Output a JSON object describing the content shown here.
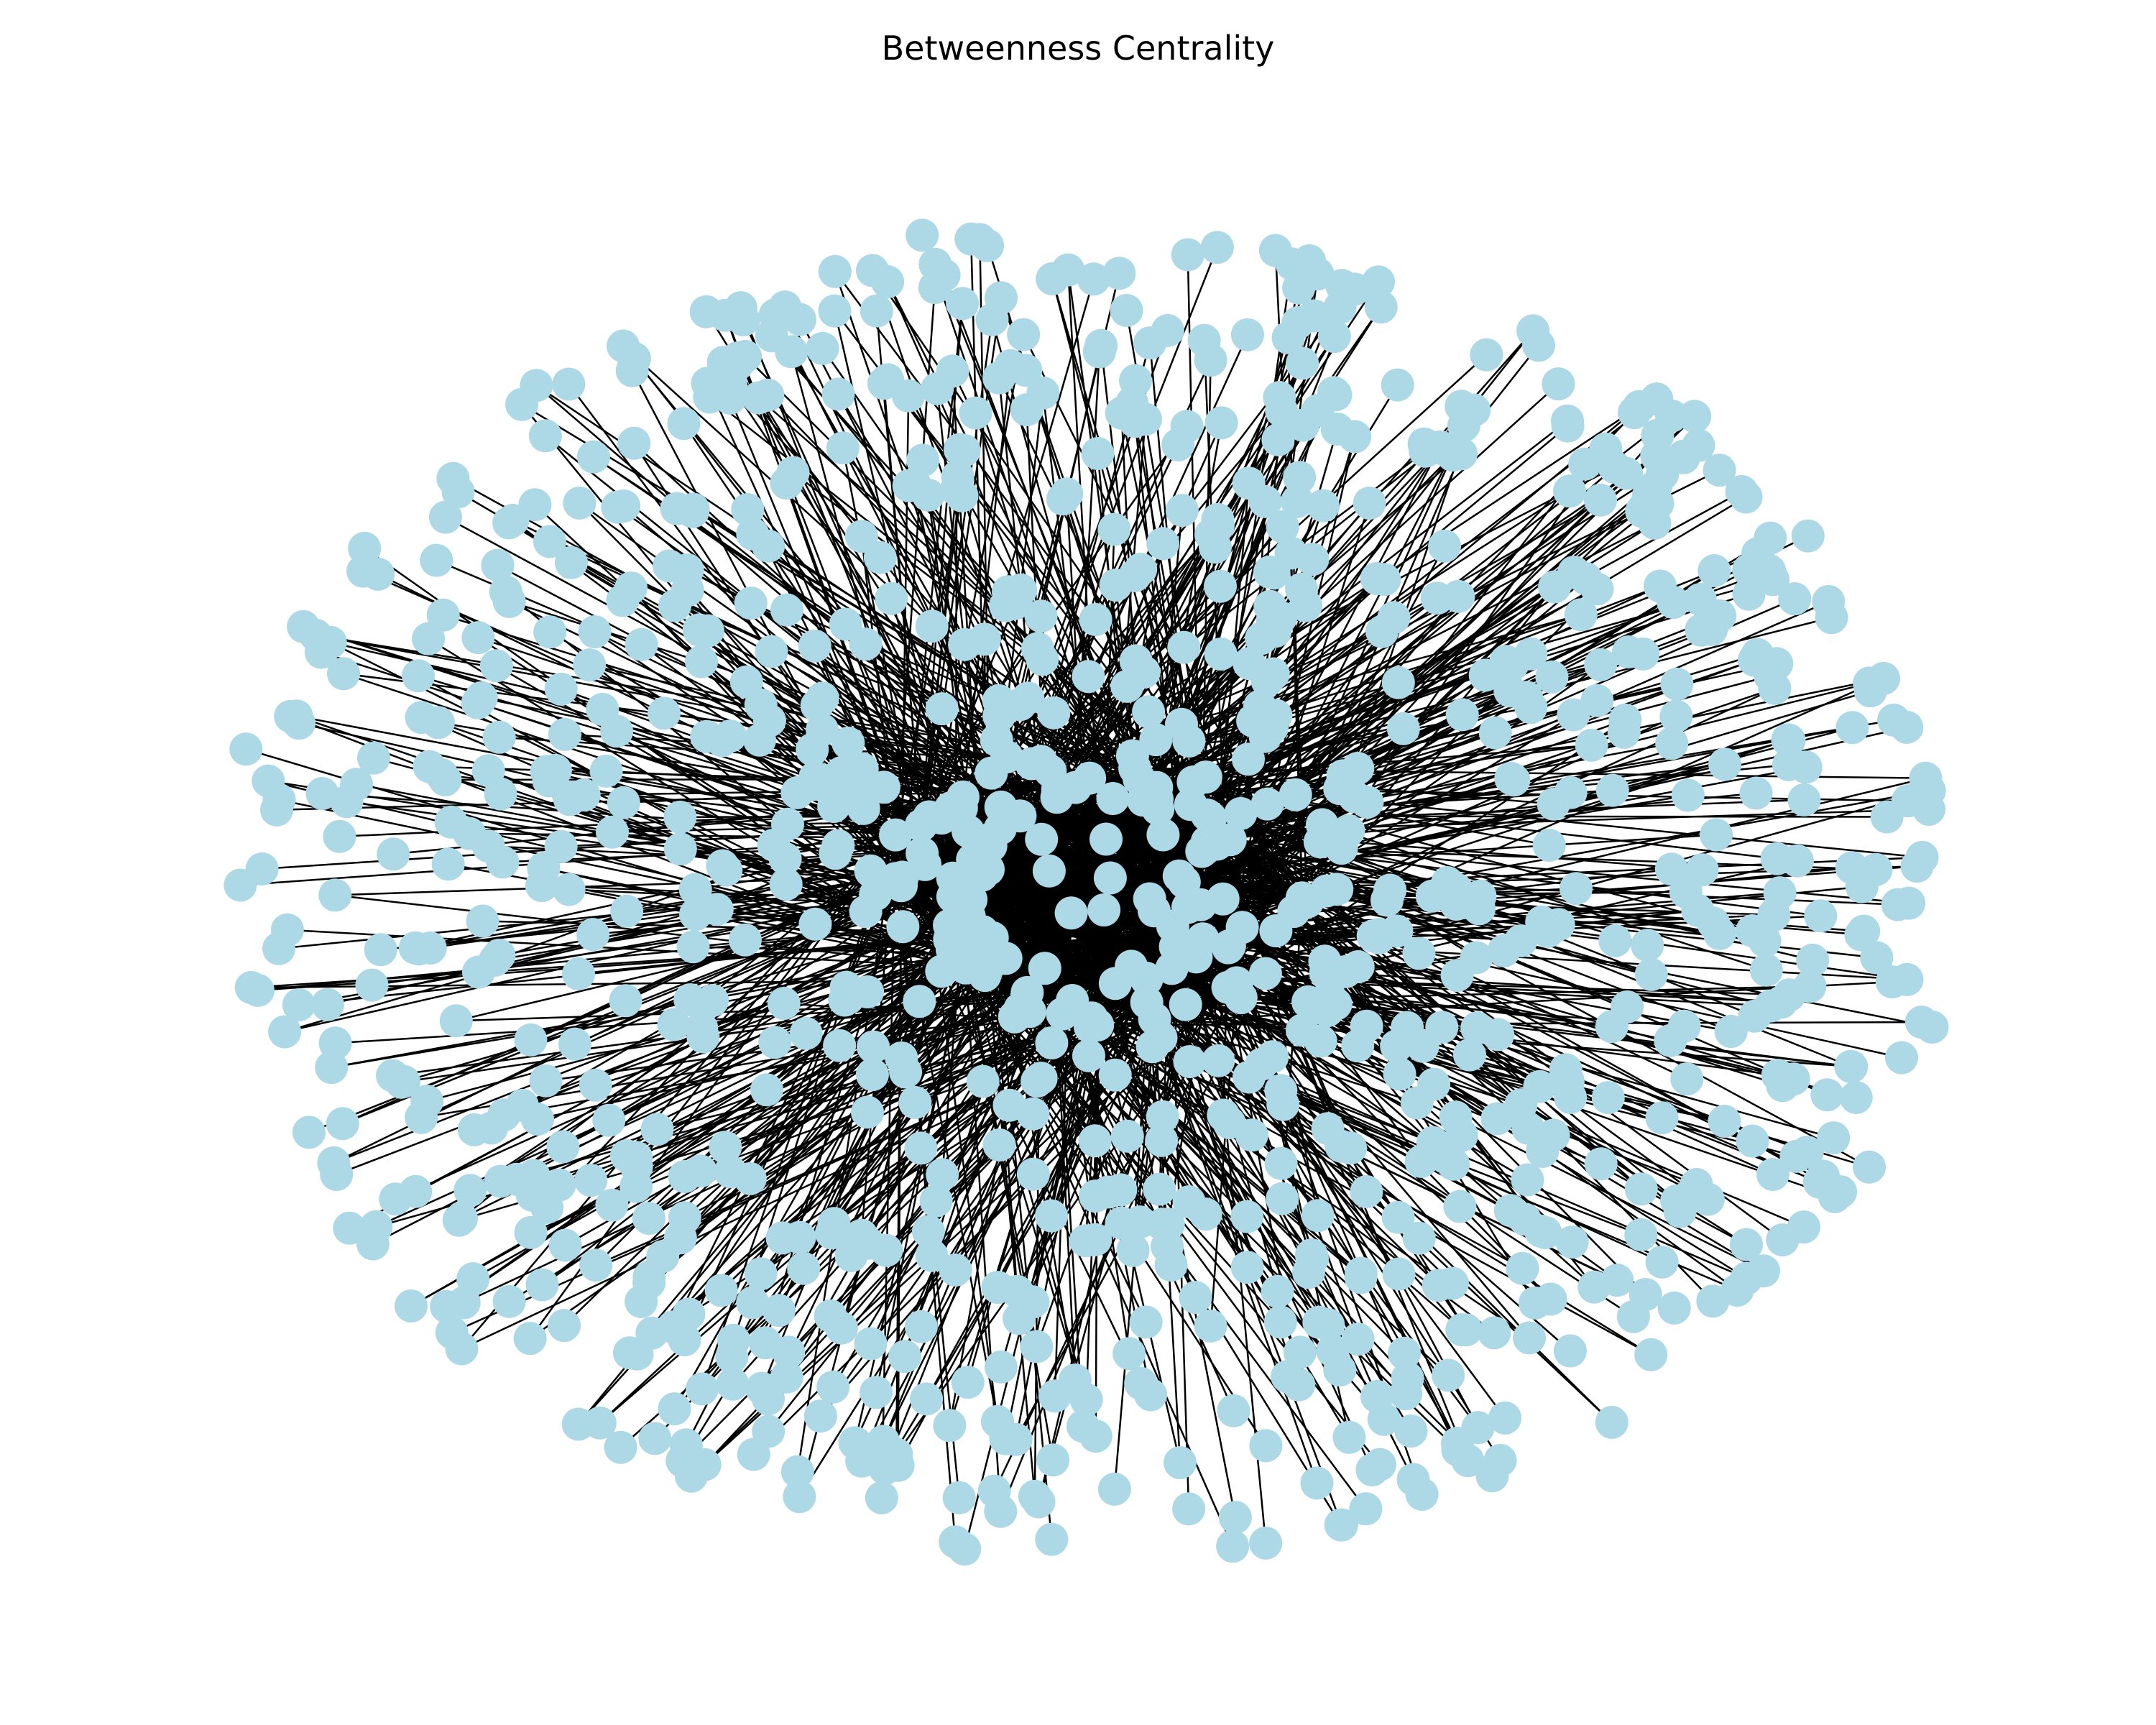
{
  "title": "Betweenness Centrality",
  "chart_data": {
    "type": "network",
    "title": "Betweenness Centrality",
    "layout": "spring",
    "node_color": "#add8e6",
    "edge_color": "#000000",
    "approx_node_count": 1000,
    "axes_visible": false,
    "grid": false,
    "legend": "none"
  }
}
